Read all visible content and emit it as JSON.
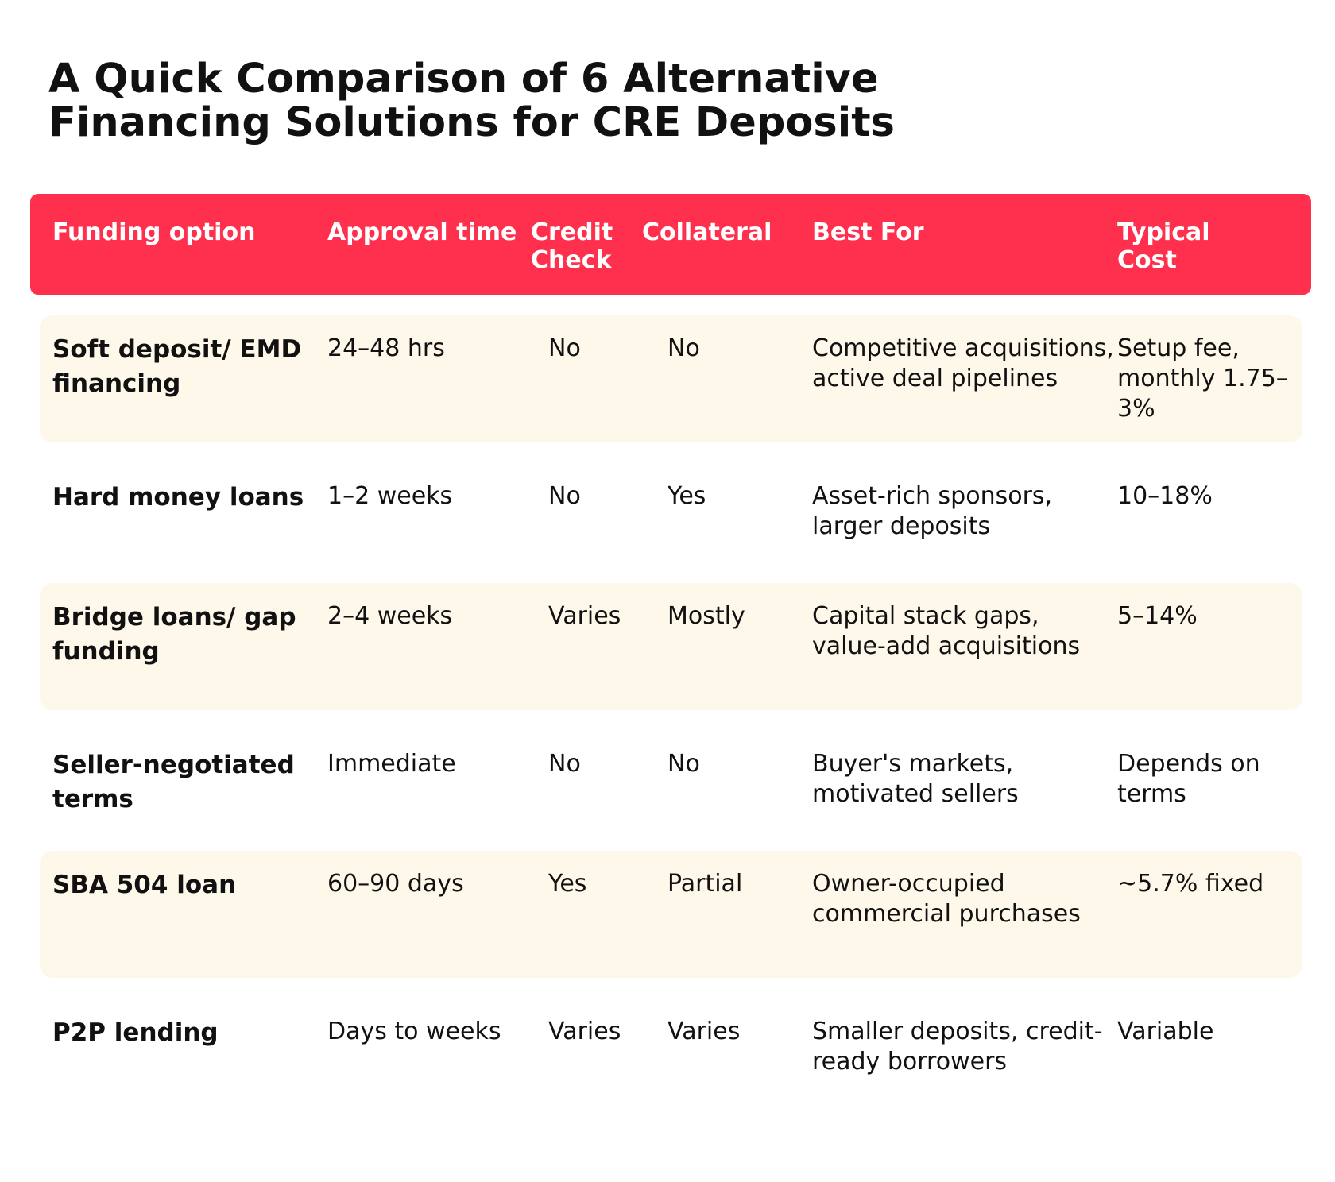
{
  "title": "A Quick Comparison of 6 Alternative Financing Solutions for CRE Deposits",
  "columns": {
    "funding_option": "Funding option",
    "approval_time": "Approval time",
    "credit_check": "Credit Check",
    "collateral": "Collateral",
    "best_for": "Best For",
    "typical_cost": "Typical Cost"
  },
  "rows": [
    {
      "name": "Soft deposit/ EMD financing",
      "approval": "24–48 hrs",
      "credit": "No",
      "collateral": "No",
      "best_for": "Competitive acquisitions, active deal pipelines",
      "cost": "Setup fee, monthly 1.75– 3%"
    },
    {
      "name": "Hard money loans",
      "approval": "1–2 weeks",
      "credit": "No",
      "collateral": "Yes",
      "best_for": "Asset-rich sponsors, larger deposits",
      "cost": "10–18%"
    },
    {
      "name": "Bridge loans/ gap funding",
      "approval": "2–4 weeks",
      "credit": "Varies",
      "collateral": "Mostly",
      "best_for": "Capital stack gaps, value-add acquisitions",
      "cost": "5–14%"
    },
    {
      "name": "Seller-negotiated terms",
      "approval": "Immediate",
      "credit": "No",
      "collateral": "No",
      "best_for": "Buyer's markets, motivated sellers",
      "cost": "Depends on terms"
    },
    {
      "name": "SBA 504 loan",
      "approval": "60–90 days",
      "credit": "Yes",
      "collateral": "Partial",
      "best_for": "Owner-occupied commercial purchases",
      "cost": "~5.7% fixed"
    },
    {
      "name": "P2P lending",
      "approval": "Days to weeks",
      "credit": "Varies",
      "collateral": "Varies",
      "best_for": "Smaller deposits, credit-ready borrowers",
      "cost": "Variable"
    }
  ],
  "colors": {
    "header_bg": "#FF2F4E",
    "shaded_row_bg": "#FDF8E9",
    "text": "#111111"
  }
}
